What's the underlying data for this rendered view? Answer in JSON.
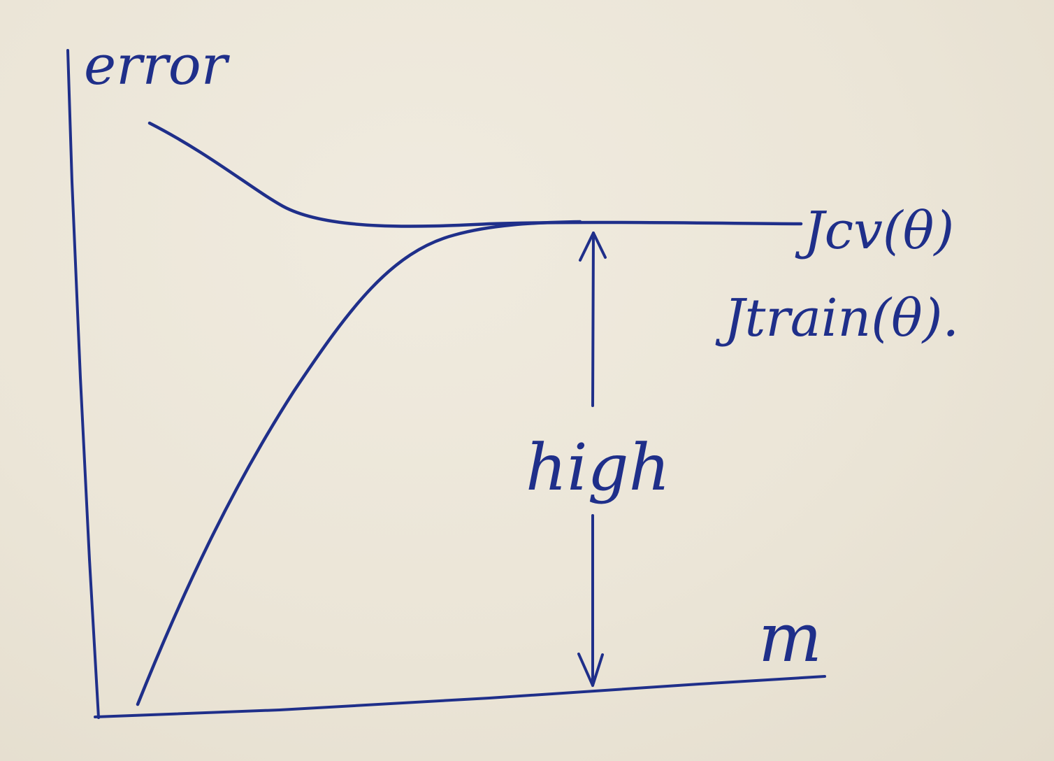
{
  "diagram": {
    "y_axis_label": "error",
    "x_axis_label": "m",
    "gap_label": "high",
    "curves": [
      {
        "id": "cv",
        "label": "Jcv(θ)",
        "description_visible": false
      },
      {
        "id": "train",
        "label": "Jtrain(θ).",
        "description_visible": false
      }
    ],
    "ink_color": "#1f2f8a",
    "paper_color": "#ece6d8"
  }
}
